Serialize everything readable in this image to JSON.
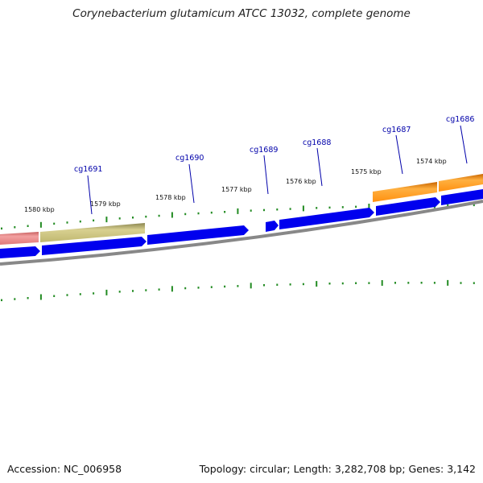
{
  "title": "Corynebacterium glutamicum ATCC 13032, complete genome",
  "footer": {
    "accession": "Accession: NC_006958",
    "summary": "Topology: circular; Length: 3,282,708 bp; Genes: 3,142"
  },
  "scale": {
    "labels": [
      "1580 kbp",
      "1579 kbp",
      "1578 kbp",
      "1577 kbp",
      "1576 kbp",
      "1575 kbp",
      "1574 kbp"
    ]
  },
  "genes": {
    "labels": [
      "cg1691",
      "cg1690",
      "cg1689",
      "cg1688",
      "cg1687",
      "cg1686"
    ]
  },
  "colors": {
    "cds": "#0000ee",
    "feature_pink": "#e88080",
    "feature_khaki": "#c8c080",
    "feature_orange": "#ff9a1a",
    "backbone": "#888888",
    "ticks": "#228b22",
    "gene_label": "#0000aa"
  }
}
